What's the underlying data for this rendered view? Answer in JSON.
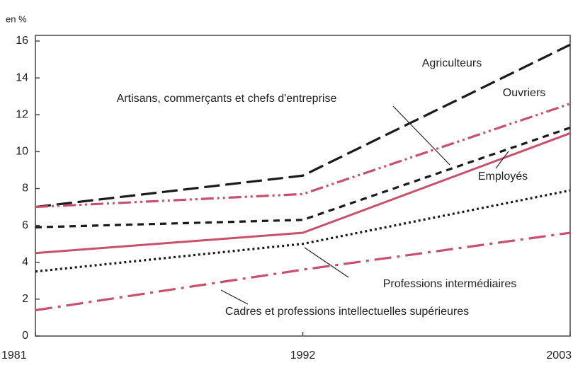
{
  "chart_data": {
    "type": "line",
    "y_label": "en %",
    "x": [
      1981,
      1992,
      2003
    ],
    "xlim": [
      1981,
      2003
    ],
    "xticks": [
      1981,
      1992,
      2003
    ],
    "ylim": [
      0,
      16
    ],
    "yticks": [
      0,
      2,
      4,
      6,
      8,
      10,
      12,
      14,
      16
    ],
    "series": [
      {
        "name": "Agriculteurs",
        "color": "#1a1a1a",
        "values": [
          7.0,
          8.7,
          15.8
        ]
      },
      {
        "name": "Ouvriers",
        "color": "#c8506a",
        "values": [
          7.0,
          7.7,
          12.6
        ]
      },
      {
        "name": "Artisans, commerçants et chefs d'entreprise",
        "color": "#1a1a1a",
        "values": [
          5.9,
          6.3,
          11.3
        ]
      },
      {
        "name": "Employés",
        "color": "#c8506a",
        "values": [
          4.5,
          5.6,
          11.0
        ]
      },
      {
        "name": "Professions intermédiaires",
        "color": "#1a1a1a",
        "values": [
          3.5,
          5.0,
          7.9
        ]
      },
      {
        "name": "Cadres et professions intellectuelles supérieures",
        "color": "#c8506a",
        "values": [
          1.4,
          3.6,
          5.6
        ]
      }
    ]
  }
}
